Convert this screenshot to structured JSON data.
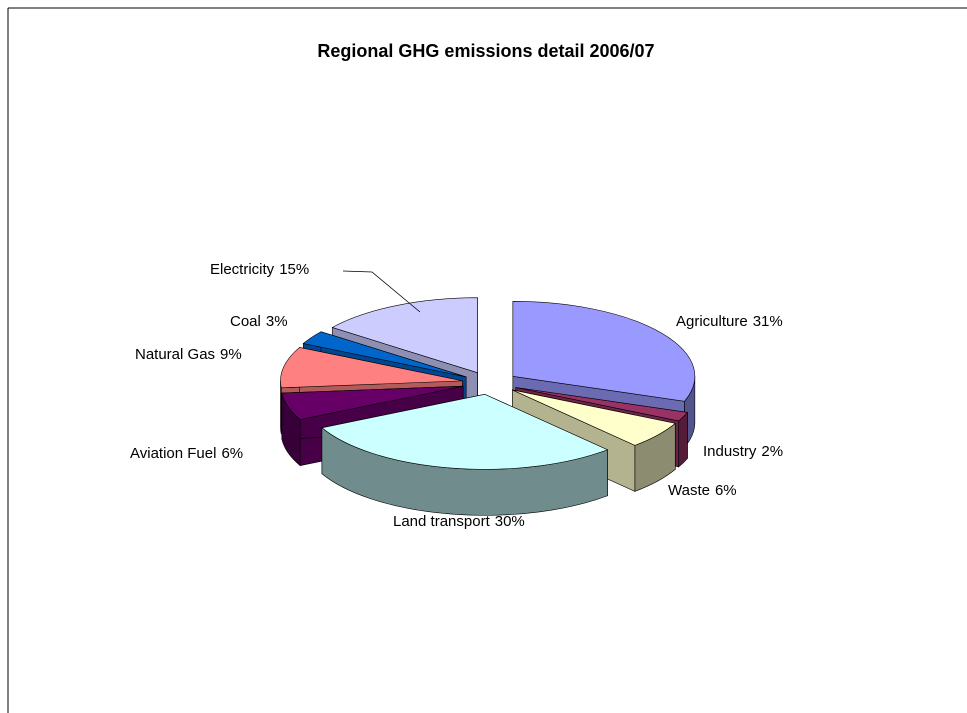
{
  "chart_data": {
    "type": "pie3d",
    "title": "Regional GHG emissions detail 2006/07",
    "categories": [
      "Agriculture",
      "Industry",
      "Waste",
      "Land transport",
      "Aviation Fuel",
      "Natural Gas",
      "Coal",
      "Electricity"
    ],
    "values": [
      31,
      2,
      6,
      30,
      6,
      9,
      3,
      15
    ],
    "value_labels": [
      "31%",
      "2%",
      "6%",
      "30%",
      "6%",
      "9%",
      "3%",
      "15%"
    ],
    "colors": [
      "#9999ff",
      "#993366",
      "#ffffcc",
      "#ccffff",
      "#660066",
      "#ff8080",
      "#0066cc",
      "#ccccff"
    ]
  }
}
